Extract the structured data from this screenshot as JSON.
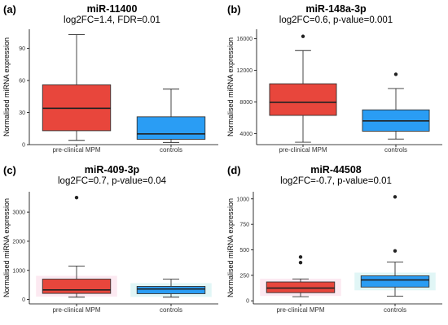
{
  "panels": [
    {
      "letter": "(a)",
      "title": "miR-11400",
      "subtitle": "log2FC=1.4, FDR=0.01"
    },
    {
      "letter": "(b)",
      "title": "miR-148a-3p",
      "subtitle": "log2FC=0.6, p-value=0.001"
    },
    {
      "letter": "(c)",
      "title": "miR-409-3p",
      "subtitle": "log2FC=0.7, p-value=0.04"
    },
    {
      "letter": "(d)",
      "title": "miR-44508",
      "subtitle": "log2FC=-0.7, p-value=0.01"
    }
  ],
  "colors": {
    "pre_clinical": "#e8463c",
    "controls": "#2a9df4",
    "glow_c": "#d9f4f4",
    "glow_pink": "#fbe4ee"
  },
  "chart_data": [
    {
      "type": "box",
      "title": "miR-11400",
      "subtitle": "log2FC=1.4, FDR=0.01",
      "ylabel": "Normalised miRNA expression",
      "xlabel": "",
      "categories": [
        "pre-clinical MPM",
        "controls"
      ],
      "ylim": [
        0,
        108
      ],
      "yticks": [
        0,
        30,
        60,
        90
      ],
      "ytick_labels": [
        "0",
        "30",
        "60",
        "90"
      ],
      "grid": false,
      "series": [
        {
          "whisker_low": 4,
          "q1": 13,
          "median": 34,
          "q3": 56,
          "whisker_high": 103,
          "outliers": []
        },
        {
          "whisker_low": 2,
          "q1": 5,
          "median": 10,
          "q3": 26,
          "whisker_high": 52,
          "outliers": []
        }
      ]
    },
    {
      "type": "box",
      "title": "miR-148a-3p",
      "subtitle": "log2FC=0.6, p-value=0.001",
      "ylabel": "Normalised miRNA expression",
      "xlabel": "",
      "categories": [
        "pre-clinical MPM",
        "controls"
      ],
      "ylim": [
        2600,
        17200
      ],
      "yticks": [
        4000,
        8000,
        12000,
        16000
      ],
      "ytick_labels": [
        "4000",
        "8000",
        "12000",
        "16000"
      ],
      "grid": false,
      "series": [
        {
          "whisker_low": 2900,
          "q1": 6300,
          "median": 7950,
          "q3": 10300,
          "whisker_high": 14500,
          "outliers": [
            16300
          ]
        },
        {
          "whisker_low": 3300,
          "q1": 4300,
          "median": 5600,
          "q3": 7000,
          "whisker_high": 9700,
          "outliers": [
            11500
          ]
        }
      ]
    },
    {
      "type": "box",
      "title": "miR-409-3p",
      "subtitle": "log2FC=0.7, p-value=0.04",
      "ylabel": "Normalised miRNA expression",
      "xlabel": "",
      "categories": [
        "pre-clinical MPM",
        "controls"
      ],
      "ylim": [
        -150,
        3700
      ],
      "yticks": [
        0,
        1000,
        2000,
        3000
      ],
      "ytick_labels": [
        "0",
        "1000",
        "2000",
        "3000"
      ],
      "grid": false,
      "series": [
        {
          "whisker_low": 80,
          "q1": 210,
          "median": 330,
          "q3": 700,
          "whisker_high": 1150,
          "outliers": [
            3500
          ]
        },
        {
          "whisker_low": 80,
          "q1": 200,
          "median": 360,
          "q3": 450,
          "whisker_high": 700,
          "outliers": []
        }
      ]
    },
    {
      "type": "box",
      "title": "miR-44508",
      "subtitle": "log2FC=-0.7, p-value=0.01",
      "ylabel": "Normalised miRNA expression",
      "xlabel": "",
      "categories": [
        "pre-clinical MPM",
        "controls"
      ],
      "ylim": [
        -30,
        1070
      ],
      "yticks": [
        0,
        250,
        500,
        750,
        1000
      ],
      "ytick_labels": [
        "0",
        "250",
        "500",
        "750",
        "1000"
      ],
      "grid": false,
      "series": [
        {
          "whisker_low": 40,
          "q1": 80,
          "median": 125,
          "q3": 185,
          "whisker_high": 215,
          "outliers": [
            375,
            430
          ]
        },
        {
          "whisker_low": 45,
          "q1": 135,
          "median": 205,
          "q3": 245,
          "whisker_high": 380,
          "outliers": [
            490,
            1020
          ]
        }
      ]
    }
  ]
}
